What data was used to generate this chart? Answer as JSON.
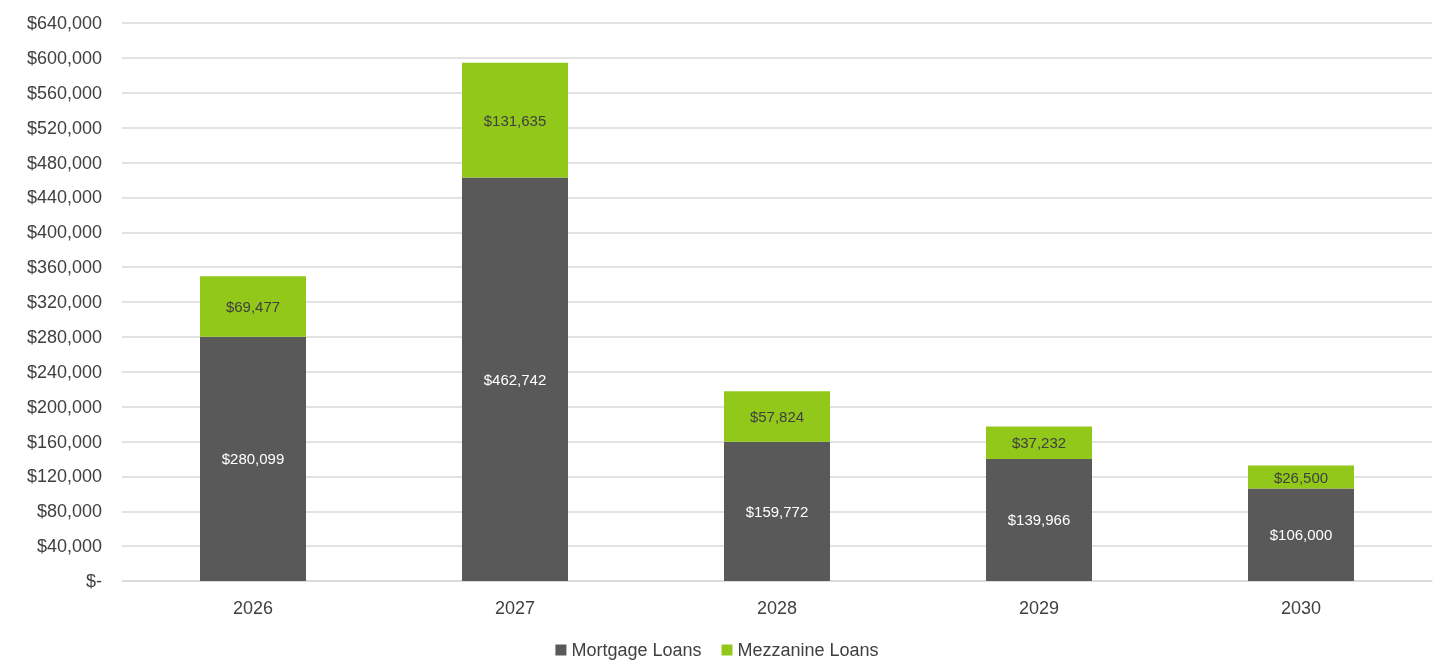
{
  "chart_data": {
    "type": "bar",
    "stacked": true,
    "categories": [
      "2026",
      "2027",
      "2028",
      "2029",
      "2030"
    ],
    "series": [
      {
        "name": "Mortgage Loans",
        "color": "#595959",
        "values": [
          280099,
          462742,
          159772,
          139966,
          106000
        ],
        "value_labels": [
          "$280,099",
          "$462,742",
          "$159,772",
          "$139,966",
          "$106,000"
        ]
      },
      {
        "name": "Mezzanine Loans",
        "color": "#92c81a",
        "values": [
          69477,
          131635,
          57824,
          37232,
          26500
        ],
        "value_labels": [
          "$69,477",
          "$131,635",
          "$57,824",
          "$37,232",
          "$26,500"
        ]
      }
    ],
    "ylim": [
      0,
      640000
    ],
    "yticks": [
      {
        "value": 0,
        "label": "$-"
      },
      {
        "value": 40000,
        "label": "$40,000"
      },
      {
        "value": 80000,
        "label": "$80,000"
      },
      {
        "value": 120000,
        "label": "$120,000"
      },
      {
        "value": 160000,
        "label": "$160,000"
      },
      {
        "value": 200000,
        "label": "$200,000"
      },
      {
        "value": 240000,
        "label": "$240,000"
      },
      {
        "value": 280000,
        "label": "$280,000"
      },
      {
        "value": 320000,
        "label": "$320,000"
      },
      {
        "value": 360000,
        "label": "$360,000"
      },
      {
        "value": 400000,
        "label": "$400,000"
      },
      {
        "value": 440000,
        "label": "$440,000"
      },
      {
        "value": 480000,
        "label": "$480,000"
      },
      {
        "value": 520000,
        "label": "$520,000"
      },
      {
        "value": 560000,
        "label": "$560,000"
      },
      {
        "value": 600000,
        "label": "$600,000"
      },
      {
        "value": 640000,
        "label": "$640,000"
      }
    ],
    "grid": "y",
    "legend": "bottom"
  }
}
